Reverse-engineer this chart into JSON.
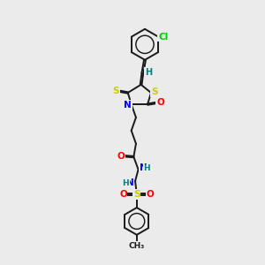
{
  "bg_color": "#ebebeb",
  "bond_color": "#1a1a1a",
  "atom_colors": {
    "S": "#cccc00",
    "N": "#0000ff",
    "O": "#ff0000",
    "Cl": "#00cc00",
    "H": "#008080",
    "C": "#1a1a1a"
  }
}
